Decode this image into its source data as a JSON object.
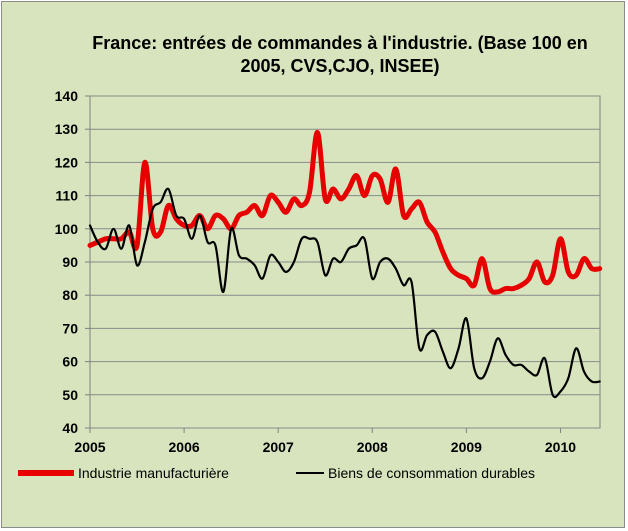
{
  "chart_data": {
    "type": "line",
    "title": "France: entrées de commandes à l'industrie. (Base 100 en 2005, CVS,CJO, INSEE)",
    "title_lines": [
      "France: entrées de commandes à l'industrie. (Base 100 en",
      "2005, CVS,CJO, INSEE)"
    ],
    "xlabel": "",
    "ylabel": "",
    "ylim": [
      40,
      140
    ],
    "yticks": [
      40,
      50,
      60,
      70,
      80,
      90,
      100,
      110,
      120,
      130,
      140
    ],
    "xlim": [
      2005,
      2010.42
    ],
    "xticks": [
      2005,
      2006,
      2007,
      2008,
      2009,
      2010
    ],
    "xtick_labels": [
      "2005",
      "2006",
      "2007",
      "2008",
      "2009",
      "2010"
    ],
    "grid": "horizontal",
    "legend_position": "bottom",
    "series": [
      {
        "name": "Industrie manufacturière",
        "color": "#e60000",
        "x": [
          2005.0,
          2005.083,
          2005.167,
          2005.25,
          2005.333,
          2005.417,
          2005.5,
          2005.583,
          2005.667,
          2005.75,
          2005.833,
          2005.917,
          2006.0,
          2006.083,
          2006.167,
          2006.25,
          2006.333,
          2006.417,
          2006.5,
          2006.583,
          2006.667,
          2006.75,
          2006.833,
          2006.917,
          2007.0,
          2007.083,
          2007.167,
          2007.25,
          2007.333,
          2007.417,
          2007.5,
          2007.583,
          2007.667,
          2007.75,
          2007.833,
          2007.917,
          2008.0,
          2008.083,
          2008.167,
          2008.25,
          2008.333,
          2008.417,
          2008.5,
          2008.583,
          2008.667,
          2008.75,
          2008.833,
          2008.917,
          2009.0,
          2009.083,
          2009.167,
          2009.25,
          2009.333,
          2009.417,
          2009.5,
          2009.583,
          2009.667,
          2009.75,
          2009.833,
          2009.917,
          2010.0,
          2010.083,
          2010.167,
          2010.25,
          2010.333,
          2010.417
        ],
        "y": [
          95,
          96,
          97,
          97,
          97,
          99,
          95,
          120,
          100,
          99,
          107,
          103,
          101,
          101,
          104,
          100,
          104,
          103,
          100,
          104,
          105,
          107,
          104,
          110,
          108,
          105,
          109,
          107,
          111,
          129,
          109,
          112,
          109,
          112,
          116,
          110,
          116,
          115,
          108,
          118,
          104,
          106,
          108,
          102,
          99,
          93,
          88,
          86,
          85,
          83,
          91,
          82,
          81,
          82,
          82,
          83,
          85,
          90,
          84,
          86,
          97,
          87,
          86,
          91,
          88,
          88
        ]
      },
      {
        "name": "Biens de consommation durables",
        "color": "#000000",
        "x": [
          2005.0,
          2005.083,
          2005.167,
          2005.25,
          2005.333,
          2005.417,
          2005.5,
          2005.583,
          2005.667,
          2005.75,
          2005.833,
          2005.917,
          2006.0,
          2006.083,
          2006.167,
          2006.25,
          2006.333,
          2006.417,
          2006.5,
          2006.583,
          2006.667,
          2006.75,
          2006.833,
          2006.917,
          2007.0,
          2007.083,
          2007.167,
          2007.25,
          2007.333,
          2007.417,
          2007.5,
          2007.583,
          2007.667,
          2007.75,
          2007.833,
          2007.917,
          2008.0,
          2008.083,
          2008.167,
          2008.25,
          2008.333,
          2008.417,
          2008.5,
          2008.583,
          2008.667,
          2008.75,
          2008.833,
          2008.917,
          2009.0,
          2009.083,
          2009.167,
          2009.25,
          2009.333,
          2009.417,
          2009.5,
          2009.583,
          2009.667,
          2009.75,
          2009.833,
          2009.917,
          2010.0,
          2010.083,
          2010.167,
          2010.25,
          2010.333,
          2010.417
        ],
        "y": [
          101,
          96,
          94,
          100,
          94,
          101,
          89,
          96,
          106,
          108,
          112,
          104,
          103,
          97,
          104,
          96,
          95,
          81,
          100,
          92,
          91,
          89,
          85,
          92,
          90,
          87,
          90,
          97,
          97,
          96,
          86,
          91,
          90,
          94,
          95,
          97,
          85,
          90,
          91,
          88,
          83,
          84,
          64,
          68,
          69,
          63,
          58,
          64,
          73,
          58,
          55,
          60,
          67,
          62,
          59,
          59,
          57,
          56,
          61,
          50,
          51,
          55,
          64,
          57,
          54,
          54
        ]
      }
    ]
  }
}
